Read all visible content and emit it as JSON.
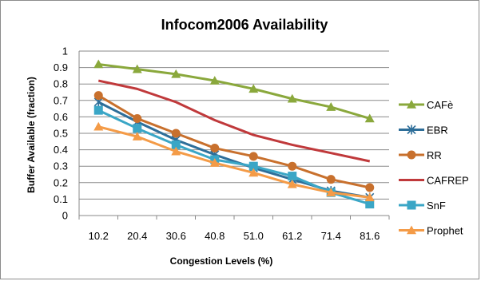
{
  "chart_data": {
    "type": "line",
    "title": "Infocom2006 Availability",
    "xlabel": "Congestion Levels (%)",
    "ylabel": "Buffer Available  (fraction)",
    "categories": [
      "10.2",
      "20.4",
      "30.6",
      "40.8",
      "51.0",
      "61.2",
      "71.4",
      "81.6"
    ],
    "ylim": [
      0,
      1
    ],
    "yticks": [
      "0",
      "0.1",
      "0.2",
      "0.3",
      "0.4",
      "0.5",
      "0.6",
      "0.7",
      "0.8",
      "0.9",
      "1"
    ],
    "grid": true,
    "legend_position": "right",
    "series": [
      {
        "name": "CAFè",
        "color": "#8aa83c",
        "marker": "triangle",
        "values": [
          0.92,
          0.89,
          0.86,
          0.82,
          0.77,
          0.71,
          0.66,
          0.59
        ]
      },
      {
        "name": "EBR",
        "color": "#2e6e99",
        "marker": "star",
        "values": [
          0.69,
          0.57,
          0.46,
          0.37,
          0.29,
          0.22,
          0.15,
          0.11
        ]
      },
      {
        "name": "RR",
        "color": "#c8702d",
        "marker": "circle",
        "values": [
          0.73,
          0.59,
          0.5,
          0.41,
          0.36,
          0.3,
          0.22,
          0.17
        ]
      },
      {
        "name": "CAFREP",
        "color": "#c0393b",
        "marker": "none",
        "values": [
          0.82,
          0.77,
          0.69,
          0.58,
          0.49,
          0.43,
          0.38,
          0.33
        ]
      },
      {
        "name": "SnF",
        "color": "#3aa6c6",
        "marker": "square",
        "values": [
          0.64,
          0.53,
          0.43,
          0.34,
          0.3,
          0.24,
          0.14,
          0.07
        ]
      },
      {
        "name": "Prophet",
        "color": "#f49b47",
        "marker": "triangle",
        "values": [
          0.54,
          0.48,
          0.39,
          0.32,
          0.26,
          0.19,
          0.14,
          0.11
        ]
      }
    ]
  }
}
